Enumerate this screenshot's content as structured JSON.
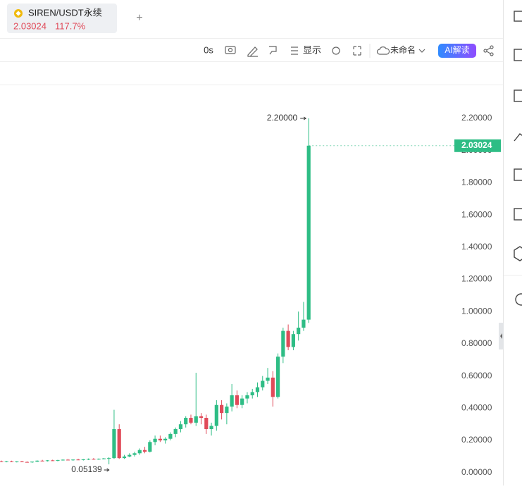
{
  "header": {
    "symbol": "SIREN/USDT永续",
    "price": "2.03024",
    "change": "117.7%"
  },
  "toolbar": {
    "interval": "0s",
    "display": "显示",
    "layout_name": "未命名",
    "ai": "AI解读"
  },
  "chart_data": {
    "type": "candlestick",
    "up_color": "#2ebd85",
    "down_color": "#e04a59",
    "open": [
      0.07,
      0.068,
      0.07,
      0.067,
      0.069,
      0.066,
      0.064,
      0.068,
      0.074,
      0.072,
      0.076,
      0.074,
      0.078,
      0.08,
      0.077,
      0.081,
      0.079,
      0.082,
      0.085,
      0.083,
      0.086,
      0.088,
      0.09,
      0.27,
      0.09,
      0.1,
      0.11,
      0.12,
      0.14,
      0.13,
      0.19,
      0.21,
      0.2,
      0.21,
      0.24,
      0.27,
      0.3,
      0.34,
      0.31,
      0.35,
      0.34,
      0.27,
      0.29,
      0.42,
      0.37,
      0.41,
      0.48,
      0.42,
      0.46,
      0.48,
      0.5,
      0.53,
      0.57,
      0.59,
      0.47,
      0.72,
      0.88,
      0.78,
      0.86,
      0.9,
      0.95
    ],
    "high": [
      0.075,
      0.072,
      0.074,
      0.071,
      0.073,
      0.07,
      0.069,
      0.076,
      0.079,
      0.078,
      0.08,
      0.079,
      0.083,
      0.085,
      0.082,
      0.086,
      0.084,
      0.088,
      0.09,
      0.088,
      0.091,
      0.095,
      0.39,
      0.3,
      0.11,
      0.12,
      0.13,
      0.15,
      0.16,
      0.2,
      0.23,
      0.23,
      0.22,
      0.25,
      0.28,
      0.32,
      0.35,
      0.36,
      0.62,
      0.37,
      0.36,
      0.31,
      0.45,
      0.45,
      0.43,
      0.55,
      0.51,
      0.48,
      0.5,
      0.52,
      0.56,
      0.6,
      0.65,
      0.63,
      0.74,
      0.9,
      0.92,
      0.88,
      1.0,
      1.06,
      2.2
    ],
    "low": [
      0.065,
      0.064,
      0.066,
      0.063,
      0.065,
      0.062,
      0.06,
      0.066,
      0.07,
      0.069,
      0.072,
      0.07,
      0.074,
      0.076,
      0.073,
      0.077,
      0.075,
      0.078,
      0.08,
      0.079,
      0.082,
      0.05139,
      0.085,
      0.085,
      0.085,
      0.095,
      0.1,
      0.11,
      0.12,
      0.125,
      0.17,
      0.19,
      0.18,
      0.2,
      0.22,
      0.25,
      0.28,
      0.3,
      0.29,
      0.3,
      0.24,
      0.23,
      0.26,
      0.33,
      0.3,
      0.38,
      0.4,
      0.4,
      0.43,
      0.46,
      0.47,
      0.51,
      0.55,
      0.41,
      0.46,
      0.68,
      0.76,
      0.76,
      0.82,
      0.88,
      0.93
    ],
    "close": [
      0.068,
      0.07,
      0.067,
      0.069,
      0.066,
      0.064,
      0.068,
      0.074,
      0.072,
      0.076,
      0.074,
      0.078,
      0.08,
      0.077,
      0.081,
      0.079,
      0.082,
      0.085,
      0.083,
      0.086,
      0.088,
      0.09,
      0.27,
      0.09,
      0.1,
      0.11,
      0.12,
      0.14,
      0.13,
      0.19,
      0.21,
      0.2,
      0.21,
      0.24,
      0.27,
      0.3,
      0.34,
      0.31,
      0.35,
      0.34,
      0.27,
      0.29,
      0.42,
      0.37,
      0.41,
      0.48,
      0.42,
      0.46,
      0.48,
      0.5,
      0.53,
      0.57,
      0.59,
      0.47,
      0.72,
      0.88,
      0.78,
      0.86,
      0.9,
      0.95,
      2.03024
    ],
    "ylim": [
      -0.08,
      2.41
    ],
    "yticks": [
      {
        "value": 0,
        "label": "0.00000"
      },
      {
        "value": 0.2,
        "label": "0.20000"
      },
      {
        "value": 0.4,
        "label": "0.40000"
      },
      {
        "value": 0.6,
        "label": "0.60000"
      },
      {
        "value": 0.8,
        "label": "0.80000"
      },
      {
        "value": 1,
        "label": "1.00000"
      },
      {
        "value": 1.2,
        "label": "1.20000"
      },
      {
        "value": 1.4,
        "label": "1.40000"
      },
      {
        "value": 1.6,
        "label": "1.60000"
      },
      {
        "value": 1.8,
        "label": "1.80000"
      },
      {
        "value": 2,
        "label": "2.00000"
      },
      {
        "value": 2.2,
        "label": "2.20000"
      }
    ],
    "last_price": {
      "value": 2.03024,
      "label": "2.03024"
    },
    "high_label": "2.20000",
    "low_label": "0.05139"
  }
}
